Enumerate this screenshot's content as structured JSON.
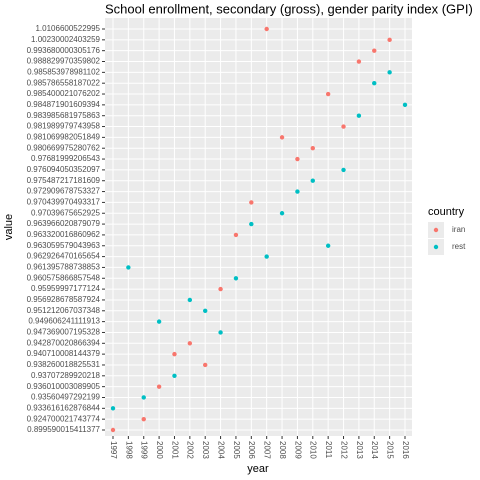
{
  "chart_data": {
    "type": "scatter",
    "title": "School enrollment, secondary (gross), gender parity index (GPI)",
    "x_label": "year",
    "y_label": "value",
    "legend_title": "country",
    "legend_position": "right",
    "xlim": [
      1997,
      2016
    ],
    "xticks": [
      1997,
      1998,
      1999,
      2000,
      2001,
      2002,
      2003,
      2004,
      2005,
      2006,
      2007,
      2008,
      2009,
      2010,
      2011,
      2012,
      2013,
      2014,
      2015,
      2016
    ],
    "y_scale": "ordinal",
    "yticks": [
      0.899590015411377,
      0.924700021743774,
      0.933616162876844,
      0.93560497292199,
      0.936010003089905,
      0.93707289920218,
      0.938260018825531,
      0.940710008144379,
      0.942870020866394,
      0.947369007195328,
      0.949606241111913,
      0.951212067037348,
      0.956928678587924,
      0.95959997177124,
      0.960575866857548,
      0.961395788738853,
      0.962926470165654,
      0.963059579043963,
      0.963320016860962,
      0.963966020879079,
      0.97039675652925,
      0.970439970493317,
      0.972909678753327,
      0.975487217181609,
      0.976094050352097,
      0.97681999206543,
      0.980669975280762,
      0.981069982051849,
      0.981989979743958,
      0.983985681975863,
      0.984871901609394,
      0.985400021076202,
      0.985786558187022,
      0.985853978981102,
      0.988829970359802,
      0.993680000305176,
      1.00230002403259,
      1.0106600522995
    ],
    "grid": true,
    "series": [
      {
        "name": "iran",
        "color": "#f8766d",
        "x": [
          2007,
          2015,
          2014,
          2013,
          2011,
          2012,
          2008,
          2010,
          2009,
          2006,
          2005,
          2004,
          2002,
          2001,
          2003,
          2000,
          1999,
          1997
        ],
        "values": [
          1.0106600522995,
          1.00230002403259,
          0.993680000305176,
          0.988829970359802,
          0.985400021076202,
          0.981989979743958,
          0.981069982051849,
          0.980669975280762,
          0.97681999206543,
          0.970439970493317,
          0.963320016860962,
          0.95959997177124,
          0.942870020866394,
          0.940710008144379,
          0.938260018825531,
          0.936010003089905,
          0.924700021743774,
          0.899590015411377
        ]
      },
      {
        "name": "rest",
        "color": "#00bfc4",
        "x": [
          2015,
          2014,
          2016,
          2013,
          2012,
          2010,
          2009,
          2008,
          2006,
          2011,
          2007,
          1998,
          2005,
          2002,
          2003,
          2000,
          2004,
          2001,
          1999,
          1997
        ],
        "values": [
          0.985853978981102,
          0.985786558187022,
          0.984871901609394,
          0.983985681975863,
          0.976094050352097,
          0.975487217181609,
          0.972909678753327,
          0.97039675652925,
          0.963966020879079,
          0.963059579043963,
          0.962926470165654,
          0.961395788738853,
          0.960575866857548,
          0.956928678587924,
          0.951212067037348,
          0.949606241111913,
          0.947369007195328,
          0.93707289920218,
          0.93560497292199,
          0.933616162876844
        ]
      }
    ]
  }
}
